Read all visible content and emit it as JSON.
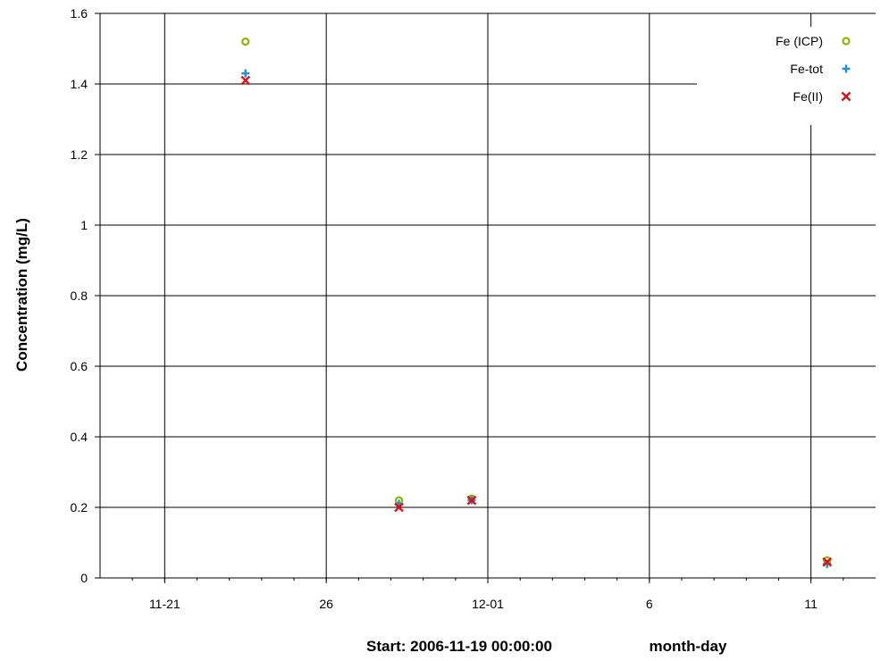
{
  "chart_data": {
    "type": "scatter",
    "ylabel": "Concentration (mg/L)",
    "xlabel_start": "Start: 2006-11-19 00:00:00",
    "xlabel_unit": "month-day",
    "x_axis": {
      "type": "date",
      "range": [
        "2006-11-19",
        "2006-12-13"
      ],
      "ticks": [
        {
          "date": "2006-11-21",
          "label": "11-21"
        },
        {
          "date": "2006-11-26",
          "label": "26"
        },
        {
          "date": "2006-12-01",
          "label": "12-01"
        },
        {
          "date": "2006-12-06",
          "label": "6"
        },
        {
          "date": "2006-12-11",
          "label": "11"
        }
      ]
    },
    "y_axis": {
      "range": [
        0,
        1.6
      ],
      "ticks": [
        {
          "value": 0,
          "label": "0"
        },
        {
          "value": 0.2,
          "label": "0.2"
        },
        {
          "value": 0.4,
          "label": "0.4"
        },
        {
          "value": 0.6,
          "label": "0.6"
        },
        {
          "value": 0.8,
          "label": "0.8"
        },
        {
          "value": 1.0,
          "label": "1"
        },
        {
          "value": 1.2,
          "label": "1.2"
        },
        {
          "value": 1.4,
          "label": "1.4"
        },
        {
          "value": 1.6,
          "label": "1.6"
        }
      ]
    },
    "grid": true,
    "legend_position": "top-right",
    "series": [
      {
        "name": "Fe (ICP)",
        "marker": "circle",
        "color": "#8db600",
        "points": [
          {
            "x": "2006-11-23 12:00",
            "y": 1.52
          },
          {
            "x": "2006-11-28 06:00",
            "y": 0.22
          },
          {
            "x": "2006-11-30 12:00",
            "y": 0.225
          },
          {
            "x": "2006-12-11 12:00",
            "y": 0.05
          }
        ]
      },
      {
        "name": "Fe-tot",
        "marker": "plus",
        "color": "#1e90d8",
        "points": [
          {
            "x": "2006-11-23 12:00",
            "y": 1.43
          },
          {
            "x": "2006-11-28 06:00",
            "y": 0.21
          },
          {
            "x": "2006-11-30 12:00",
            "y": 0.22
          },
          {
            "x": "2006-12-11 12:00",
            "y": 0.04
          }
        ]
      },
      {
        "name": "Fe(II)",
        "marker": "x",
        "color": "#e0101a",
        "points": [
          {
            "x": "2006-11-23 12:00",
            "y": 1.41
          },
          {
            "x": "2006-11-28 06:00",
            "y": 0.2
          },
          {
            "x": "2006-11-30 12:00",
            "y": 0.22
          },
          {
            "x": "2006-12-11 12:00",
            "y": 0.045
          }
        ]
      }
    ]
  }
}
